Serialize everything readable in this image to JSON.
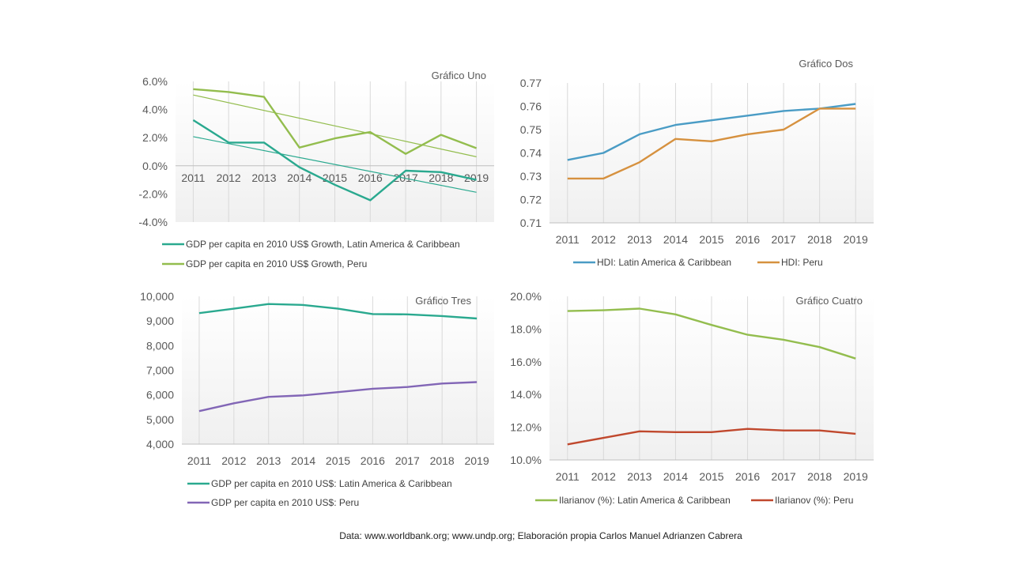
{
  "colors": {
    "teal": "#2aa98f",
    "green": "#93bd4e",
    "blue": "#4a9cc5",
    "orange": "#d6913f",
    "purple": "#8266b6",
    "red": "#c0482d",
    "grid": "#d9d9d9",
    "plot_bg_gradient": [
      "#ffffff",
      "#f0f0f0"
    ]
  },
  "source_note": "Data: www.worldbank.org; www.undp.org;  Elaboración propia Carlos Manuel Adrianzen Cabrera",
  "chart_data": [
    {
      "id": "uno",
      "type": "line",
      "title": "Gráfico Uno",
      "categories": [
        "2011",
        "2012",
        "2013",
        "2014",
        "2015",
        "2016",
        "2017",
        "2018",
        "2019"
      ],
      "yticks": [
        "6.0%",
        "4.0%",
        "2.0%",
        "0.0%",
        "-2.0%",
        "-4.0%"
      ],
      "ylim": [
        -4,
        6
      ],
      "y_format": "percent",
      "trendlines": true,
      "legend_position": "bottom",
      "series": [
        {
          "name": "GDP per capita en 2010 US$ Growth, Latin America & Caribbean",
          "color": "#2aa98f",
          "values": [
            3.25,
            1.65,
            1.65,
            -0.1,
            -1.35,
            -2.45,
            -0.35,
            -0.45,
            -1.0
          ]
        },
        {
          "name": "GDP per capita en 2010 US$ Growth, Peru",
          "color": "#93bd4e",
          "values": [
            5.45,
            5.25,
            4.9,
            1.3,
            1.95,
            2.4,
            0.85,
            2.2,
            1.25
          ]
        }
      ]
    },
    {
      "id": "dos",
      "type": "line",
      "title": "Gráfico Dos",
      "categories": [
        "2011",
        "2012",
        "2013",
        "2014",
        "2015",
        "2016",
        "2017",
        "2018",
        "2019"
      ],
      "yticks": [
        "0.77",
        "0.76",
        "0.75",
        "0.74",
        "0.73",
        "0.72",
        "0.71"
      ],
      "ylim": [
        0.71,
        0.77
      ],
      "legend_position": "bottom",
      "series": [
        {
          "name": "HDI:  Latin America & Caribbean",
          "color": "#4a9cc5",
          "values": [
            0.737,
            0.74,
            0.748,
            0.752,
            0.754,
            0.756,
            0.758,
            0.759,
            0.761
          ]
        },
        {
          "name": "HDI: Peru",
          "color": "#d6913f",
          "values": [
            0.729,
            0.729,
            0.736,
            0.746,
            0.745,
            0.748,
            0.75,
            0.759,
            0.759
          ]
        }
      ]
    },
    {
      "id": "tres",
      "type": "line",
      "title": "Gráfico Tres",
      "categories": [
        "2011",
        "2012",
        "2013",
        "2014",
        "2015",
        "2016",
        "2017",
        "2018",
        "2019"
      ],
      "yticks": [
        "10,000",
        "9,000",
        "8,000",
        "7,000",
        "6,000",
        "5,000",
        "4,000"
      ],
      "ylim": [
        4000,
        10000
      ],
      "legend_position": "bottom",
      "series": [
        {
          "name": "GDP per capita en 2010 US$: Latin America & Caribbean",
          "color": "#2aa98f",
          "values": [
            9320,
            9500,
            9690,
            9650,
            9500,
            9280,
            9270,
            9200,
            9100
          ]
        },
        {
          "name": "GDP per capita en 2010 US$: Peru",
          "color": "#8266b6",
          "values": [
            5340,
            5660,
            5920,
            5980,
            6110,
            6250,
            6320,
            6460,
            6520
          ]
        }
      ]
    },
    {
      "id": "cuatro",
      "type": "line",
      "title": "Gráfico Cuatro",
      "categories": [
        "2011",
        "2012",
        "2013",
        "2014",
        "2015",
        "2016",
        "2017",
        "2018",
        "2019"
      ],
      "yticks": [
        "20.0%",
        "18.0%",
        "16.0%",
        "14.0%",
        "12.0%",
        "10.0%"
      ],
      "ylim": [
        10,
        20
      ],
      "legend_position": "bottom",
      "series": [
        {
          "name": "Ilarianov (%):  Latin America & Caribbean",
          "color": "#93bd4e",
          "values": [
            19.1,
            19.15,
            19.25,
            18.9,
            18.25,
            17.65,
            17.35,
            16.9,
            16.2
          ]
        },
        {
          "name": "Ilarianov (%):  Peru",
          "color": "#c0482d",
          "values": [
            10.95,
            11.35,
            11.75,
            11.7,
            11.7,
            11.9,
            11.8,
            11.8,
            11.6
          ]
        }
      ]
    }
  ]
}
